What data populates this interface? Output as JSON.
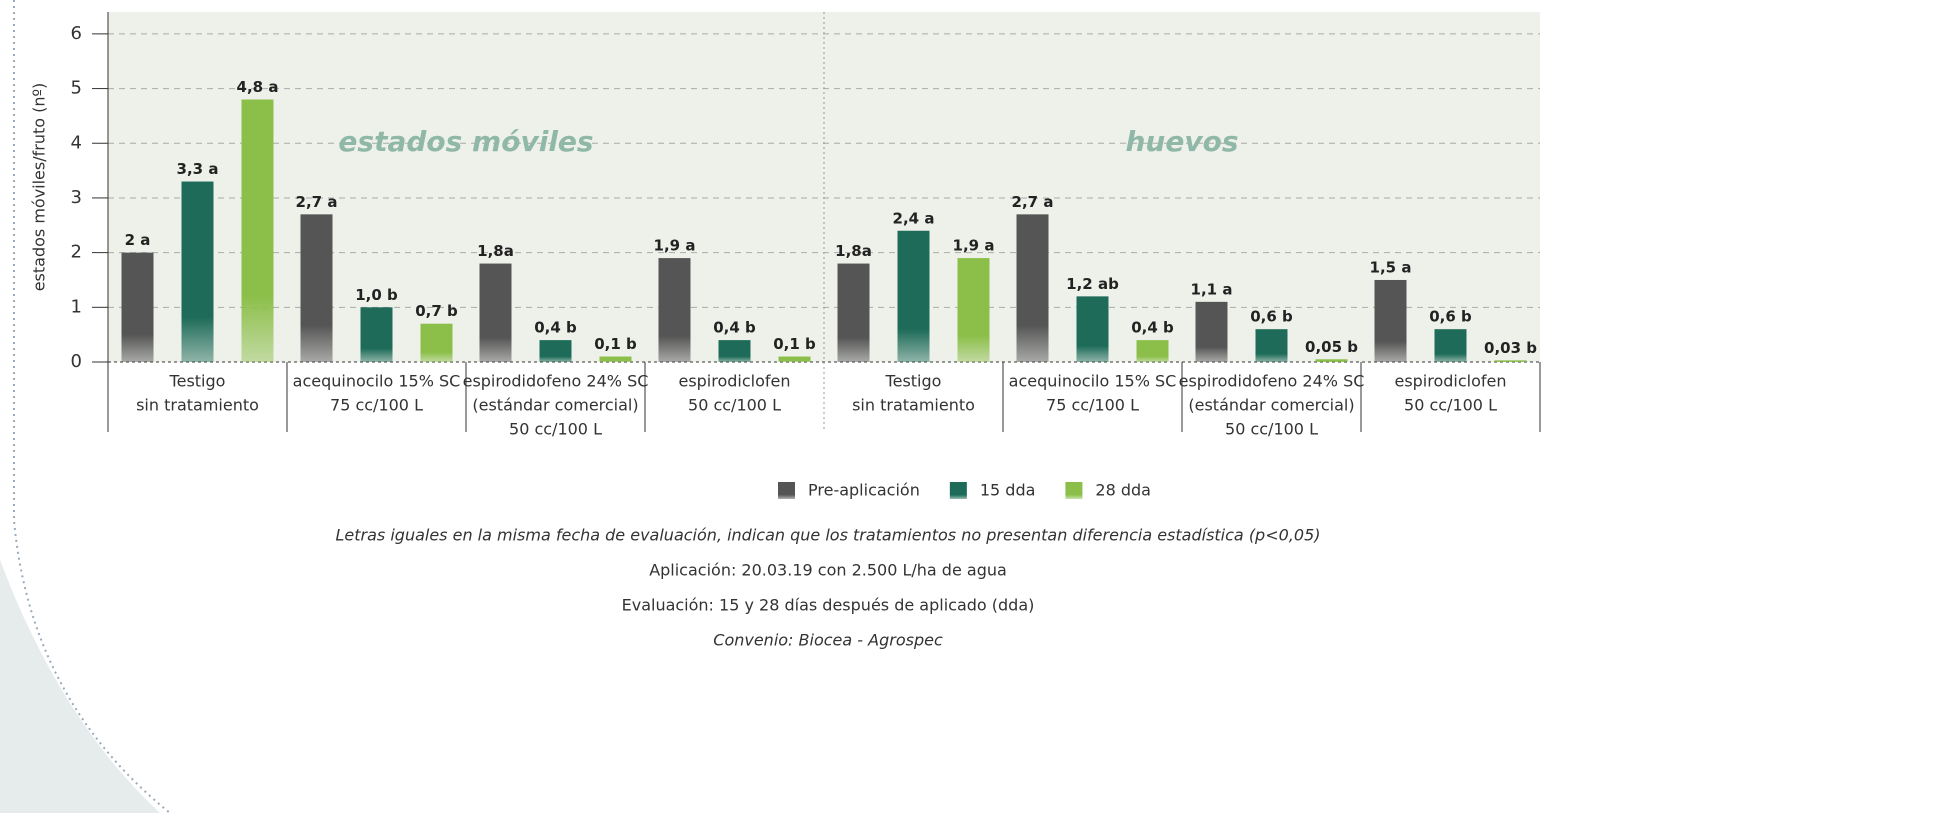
{
  "chart_data": {
    "type": "bar",
    "y_label": "estados móviles/fruto (nº)",
    "annotations": [
      "estados móviles",
      "huevos"
    ],
    "categories": [
      [
        "Testigo",
        "sin tratamiento"
      ],
      [
        "acequinocilo 15% SC",
        "75 cc/100 L"
      ],
      [
        "espirodidofeno 24% SC",
        "(estándar comercial)",
        "50 cc/100 L"
      ],
      [
        "espirodiclofen",
        "50 cc/100 L"
      ],
      [
        "Testigo",
        "sin tratamiento"
      ],
      [
        "acequinocilo 15% SC",
        "75 cc/100 L"
      ],
      [
        "espirodidofeno 24% SC",
        "(estándar comercial)",
        "50 cc/100 L"
      ],
      [
        "espirodiclofen",
        "50 cc/100 L"
      ]
    ],
    "series": [
      {
        "name": "Pre-aplicación",
        "color": "#555555",
        "values": [
          2,
          2.7,
          1.8,
          1.9,
          1.8,
          2.7,
          1.1,
          1.5
        ],
        "value_labels": [
          "2 a",
          "2,7 a",
          "1,8a",
          "1,9 a",
          "1,8a",
          "2,7 a",
          "1,1 a",
          "1,5 a"
        ]
      },
      {
        "name": "15 dda",
        "color": "#1d6b58",
        "values": [
          3.3,
          1.0,
          0.4,
          0.4,
          2.4,
          1.2,
          0.6,
          0.6
        ],
        "value_labels": [
          "3,3 a",
          "1,0 b",
          "0,4 b",
          "0,4 b",
          "2,4 a",
          "1,2 ab",
          "0,6 b",
          "0,6 b"
        ]
      },
      {
        "name": "28 dda",
        "color": "#8cbf4a",
        "values": [
          4.8,
          0.7,
          0.1,
          0.1,
          1.9,
          0.4,
          0.05,
          0.03
        ],
        "value_labels": [
          "4,8 a",
          "0,7 b",
          "0,1 b",
          "0,1 b",
          "1,9 a",
          "0,4 b",
          "0,05 b",
          "0,03 b"
        ]
      }
    ],
    "ylim": [
      0,
      6.4
    ],
    "yticks": [
      0,
      1,
      2,
      3,
      4,
      5,
      6
    ],
    "grid": true,
    "footnotes": [
      "Letras iguales en la misma fecha de evaluación, indican que los tratamientos no presentan diferencia estadística (p<0,05)",
      "Aplicación: 20.03.19 con 2.500 L/ha de agua",
      "Evaluación: 15 y 28 días después de aplicado (dda)",
      "Convenio: Biocea - Agrospec"
    ]
  }
}
